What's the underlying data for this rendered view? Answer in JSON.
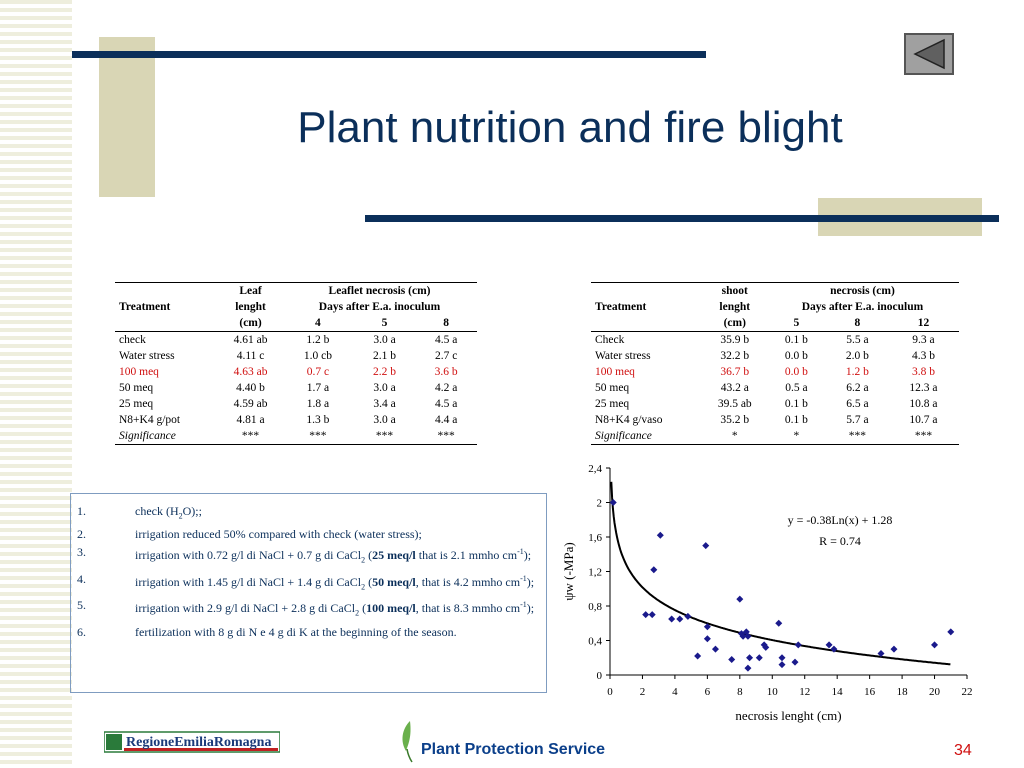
{
  "title": "Plant nutrition and fire blight",
  "table1": {
    "headers": [
      "Treatment",
      "Leaf lenght (cm)",
      "Leaflet necrosis (cm)",
      "Days after E.a. inoculum"
    ],
    "h_leaf": "Leaf",
    "h_lenght": "lenght",
    "h_cm": "(cm)",
    "h_treat": "Treatment",
    "h_necrosis": "Leaflet necrosis (cm)",
    "h_days": "Days after E.a. inoculum",
    "days": [
      "4",
      "5",
      "8"
    ],
    "rows": [
      [
        "check",
        "4.61 ab",
        "1.2 b",
        "3.0 a",
        "4.5 a"
      ],
      [
        "Water stress",
        "4.11 c",
        "1.0 cb",
        "2.1 b",
        "2.7 c"
      ],
      [
        "100 meq",
        "4.63 ab",
        "0.7 c",
        "2.2 b",
        "3.6 b"
      ],
      [
        "50 meq",
        "4.40 b",
        "1.7 a",
        "3.0 a",
        "4.2 a"
      ],
      [
        "25 meq",
        "4.59 ab",
        "1.8 a",
        "3.4 a",
        "4.5 a"
      ],
      [
        "N8+K4 g/pot",
        "4.81 a",
        "1.3 b",
        "3.0 a",
        "4.4 a"
      ],
      [
        "Significance",
        "***",
        "***",
        "***",
        "***"
      ]
    ]
  },
  "table2": {
    "h_shoot": "shoot",
    "h_lenght": "lenght",
    "h_cm": "(cm)",
    "h_treat": "Treatment",
    "h_necrosis": "necrosis (cm)",
    "h_days": "Days after E.a. inoculum",
    "days": [
      "5",
      "8",
      "12"
    ],
    "rows": [
      [
        "Check",
        "35.9 b",
        "0.1 b",
        "5.5 a",
        "9.3 a"
      ],
      [
        "Water stress",
        "32.2 b",
        "0.0 b",
        "2.0 b",
        "4.3 b"
      ],
      [
        "100 meq",
        "36.7 b",
        "0.0 b",
        "1.2 b",
        "3.8 b"
      ],
      [
        "50 meq",
        "43.2 a",
        "0.5 a",
        "6.2 a",
        "12.3 a"
      ],
      [
        "25 meq",
        "39.5 ab",
        "0.1 b",
        "6.5 a",
        "10.8 a"
      ],
      [
        "N8+K4 g/vaso",
        "35.2 b",
        "0.1 b",
        "5.7 a",
        "10.7 a"
      ],
      [
        "Significance",
        "*",
        "*",
        "***",
        "***"
      ]
    ]
  },
  "notes": [
    {
      "num": "1.",
      "a": "check (H",
      "sub": "2",
      "b": "O);;"
    },
    {
      "num": "2.",
      "a": "irrigation reduced 50% compared with check (water stress);"
    },
    {
      "num": "3.",
      "a": "irrigation with 0.72 g/l di NaCl + 0.7 g di CaCl",
      "sub": "2",
      "b": " (",
      "bold": "25 meq/l",
      "c": " that is 2.1 mmho cm",
      "sup": "-1",
      "d": ");"
    },
    {
      "num": "4.",
      "a": "irrigation with 1.45 g/l di NaCl + 1.4 g di CaCl",
      "sub": "2",
      "b": " (",
      "bold": "50 meq/l",
      "c": ", that is 4.2 mmho cm",
      "sup": "-1",
      "d": ");"
    },
    {
      "num": "5.",
      "a": "irrigation with 2.9 g/l di NaCl + 2.8 g di CaCl",
      "sub": "2",
      "b": " (",
      "bold": "100 meq/l",
      "c": ", that is 8.3 mmho cm",
      "sup": "-1",
      "d": ");"
    },
    {
      "num": "6.",
      "a": "fertilization with 8 g di N e 4 g di K at the beginning of the season."
    }
  ],
  "chart_data": {
    "type": "scatter",
    "xlabel": "necrosis lenght (cm)",
    "ylabel": "ψw (-MPa)",
    "xlim": [
      0,
      22
    ],
    "ylim": [
      0,
      2.4
    ],
    "xticks": [
      "0",
      "2",
      "4",
      "6",
      "8",
      "10",
      "12",
      "14",
      "16",
      "18",
      "20",
      "22"
    ],
    "yticks": [
      "0",
      "0,4",
      "0,8",
      "1,2",
      "1,6",
      "2",
      "2,4"
    ],
    "equation": "y = -0.38Ln(x) + 1.28",
    "r_label": "R = 0.74",
    "trend": {
      "a": -0.38,
      "b": 1.28
    },
    "points": [
      [
        0.2,
        2.0
      ],
      [
        2.2,
        0.7
      ],
      [
        2.6,
        0.7
      ],
      [
        2.7,
        1.22
      ],
      [
        3.1,
        1.62
      ],
      [
        3.8,
        0.65
      ],
      [
        4.3,
        0.65
      ],
      [
        4.8,
        0.68
      ],
      [
        5.4,
        0.22
      ],
      [
        5.9,
        1.5
      ],
      [
        6.0,
        0.56
      ],
      [
        6.0,
        0.42
      ],
      [
        6.5,
        0.3
      ],
      [
        7.5,
        0.18
      ],
      [
        8.0,
        0.88
      ],
      [
        8.1,
        0.48
      ],
      [
        8.2,
        0.45
      ],
      [
        8.4,
        0.5
      ],
      [
        8.5,
        0.45
      ],
      [
        8.6,
        0.2
      ],
      [
        8.5,
        0.08
      ],
      [
        9.2,
        0.2
      ],
      [
        9.5,
        0.35
      ],
      [
        9.6,
        0.32
      ],
      [
        10.4,
        0.6
      ],
      [
        10.6,
        0.2
      ],
      [
        10.6,
        0.12
      ],
      [
        11.4,
        0.15
      ],
      [
        11.6,
        0.35
      ],
      [
        13.5,
        0.35
      ],
      [
        13.8,
        0.3
      ],
      [
        16.7,
        0.25
      ],
      [
        17.5,
        0.3
      ],
      [
        20.0,
        0.35
      ],
      [
        21.0,
        0.5
      ]
    ]
  },
  "footer": {
    "logo_text": "RegioneEmiliaRomagna",
    "service": "Plant Protection Service",
    "page": "34"
  },
  "colors": {
    "navy": "#0b2f5a",
    "beige": "#d9d6b5",
    "red": "#d01010",
    "marker": "#1a1a8c"
  }
}
